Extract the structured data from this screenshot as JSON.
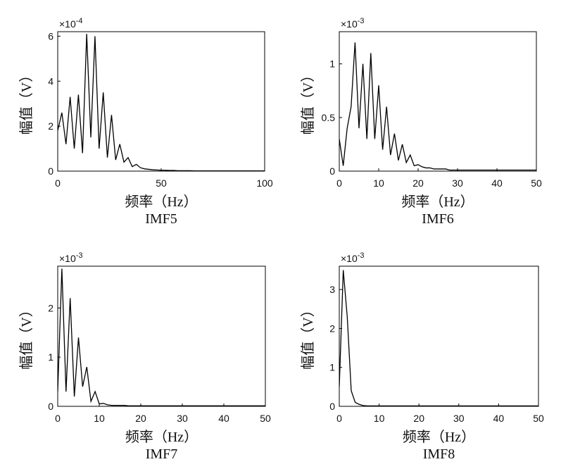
{
  "chart_data": [
    {
      "type": "line",
      "title": "IMF5",
      "xlabel": "频率（Hz）",
      "ylabel": "幅值（V）",
      "y_offset_base": "×10",
      "y_offset_exponent": "-4",
      "color": "#000000",
      "xlim": [
        0,
        100
      ],
      "xticks": [
        0,
        50,
        100
      ],
      "ylim": [
        0,
        6.2
      ],
      "yticks": [
        0,
        2,
        4,
        6
      ],
      "x": [
        0,
        2,
        4,
        6,
        8,
        10,
        12,
        14,
        16,
        18,
        20,
        22,
        24,
        26,
        28,
        30,
        32,
        34,
        36,
        38,
        40,
        42,
        44,
        46,
        48,
        50,
        52,
        54,
        56,
        58,
        60,
        62,
        64,
        66,
        68,
        70,
        72,
        74,
        76,
        78,
        80,
        82,
        84,
        86,
        88,
        90,
        92,
        94,
        96,
        98,
        100
      ],
      "values": [
        1.8,
        2.6,
        1.2,
        3.3,
        1.0,
        3.4,
        0.8,
        6.1,
        1.5,
        6.0,
        1.0,
        3.5,
        0.6,
        2.5,
        0.5,
        1.2,
        0.4,
        0.6,
        0.2,
        0.3,
        0.15,
        0.1,
        0.08,
        0.06,
        0.05,
        0.04,
        0.04,
        0.03,
        0.03,
        0.02,
        0.02,
        0.02,
        0.02,
        0.01,
        0.01,
        0.01,
        0.01,
        0.01,
        0.01,
        0.01,
        0.01,
        0.01,
        0.01,
        0.01,
        0.01,
        0.01,
        0.01,
        0.01,
        0.01,
        0.01,
        0.01
      ]
    },
    {
      "type": "line",
      "title": "IMF6",
      "xlabel": "频率（Hz）",
      "ylabel": "幅值（V）",
      "y_offset_base": "×10",
      "y_offset_exponent": "-3",
      "color": "#000000",
      "xlim": [
        0,
        50
      ],
      "xticks": [
        0,
        10,
        20,
        30,
        40,
        50
      ],
      "ylim": [
        0,
        1.3
      ],
      "yticks": [
        0,
        0.5,
        1
      ],
      "x": [
        0,
        1,
        2,
        3,
        4,
        5,
        6,
        7,
        8,
        9,
        10,
        11,
        12,
        13,
        14,
        15,
        16,
        17,
        18,
        19,
        20,
        21,
        22,
        23,
        24,
        25,
        26,
        27,
        28,
        29,
        30,
        31,
        32,
        33,
        34,
        35,
        36,
        37,
        38,
        39,
        40,
        41,
        42,
        43,
        44,
        45,
        46,
        47,
        48,
        49,
        50
      ],
      "values": [
        0.3,
        0.05,
        0.4,
        0.6,
        1.2,
        0.4,
        1.0,
        0.3,
        1.1,
        0.3,
        0.8,
        0.2,
        0.6,
        0.15,
        0.35,
        0.1,
        0.25,
        0.08,
        0.15,
        0.05,
        0.06,
        0.04,
        0.03,
        0.03,
        0.02,
        0.02,
        0.02,
        0.02,
        0.01,
        0.01,
        0.01,
        0.01,
        0.01,
        0.01,
        0.01,
        0.01,
        0.01,
        0.01,
        0.01,
        0.01,
        0.01,
        0.01,
        0.01,
        0.01,
        0.01,
        0.01,
        0.01,
        0.01,
        0.01,
        0.01,
        0.01
      ]
    },
    {
      "type": "line",
      "title": "IMF7",
      "xlabel": "频率（Hz）",
      "ylabel": "幅值（V）",
      "y_offset_base": "×10",
      "y_offset_exponent": "-3",
      "color": "#000000",
      "xlim": [
        0,
        50
      ],
      "xticks": [
        0,
        10,
        20,
        30,
        40,
        50
      ],
      "ylim": [
        0,
        2.85
      ],
      "yticks": [
        0,
        1,
        2
      ],
      "x": [
        0,
        1,
        2,
        3,
        4,
        5,
        6,
        7,
        8,
        9,
        10,
        11,
        12,
        13,
        14,
        15,
        16,
        17,
        18,
        19,
        20,
        21,
        22,
        23,
        24,
        25,
        26,
        27,
        28,
        29,
        30,
        31,
        32,
        33,
        34,
        35,
        36,
        37,
        38,
        39,
        40,
        41,
        42,
        43,
        44,
        45,
        46,
        47,
        48,
        49,
        50
      ],
      "values": [
        0.3,
        2.8,
        0.3,
        2.2,
        0.2,
        1.4,
        0.4,
        0.8,
        0.1,
        0.3,
        0.05,
        0.06,
        0.03,
        0.02,
        0.02,
        0.02,
        0.02,
        0.01,
        0.01,
        0.01,
        0.01,
        0.01,
        0.01,
        0.01,
        0.01,
        0.01,
        0.01,
        0.01,
        0.01,
        0.01,
        0.01,
        0.01,
        0.01,
        0.01,
        0.01,
        0.01,
        0.01,
        0.01,
        0.01,
        0.01,
        0.01,
        0.01,
        0.01,
        0.01,
        0.01,
        0.01,
        0.01,
        0.01,
        0.01,
        0.01,
        0.01
      ]
    },
    {
      "type": "line",
      "title": "IMF8",
      "xlabel": "频率（Hz）",
      "ylabel": "幅值（V）",
      "y_offset_base": "×10",
      "y_offset_exponent": "-3",
      "color": "#000000",
      "xlim": [
        0,
        50
      ],
      "xticks": [
        0,
        10,
        20,
        30,
        40,
        50
      ],
      "ylim": [
        0,
        3.6
      ],
      "yticks": [
        0,
        1,
        2,
        3
      ],
      "x": [
        0,
        1,
        2,
        3,
        4,
        5,
        6,
        7,
        8,
        9,
        10,
        11,
        12,
        13,
        14,
        15,
        16,
        17,
        18,
        19,
        20,
        21,
        22,
        23,
        24,
        25,
        26,
        27,
        28,
        29,
        30,
        31,
        32,
        33,
        34,
        35,
        36,
        37,
        38,
        39,
        40,
        41,
        42,
        43,
        44,
        45,
        46,
        47,
        48,
        49,
        50
      ],
      "values": [
        0.5,
        3.5,
        2.3,
        0.4,
        0.1,
        0.05,
        0.02,
        0.01,
        0.01,
        0.01,
        0.01,
        0.01,
        0.01,
        0.01,
        0.01,
        0.01,
        0.01,
        0.01,
        0.01,
        0.01,
        0.01,
        0.01,
        0.01,
        0.01,
        0.01,
        0.01,
        0.01,
        0.01,
        0.01,
        0.01,
        0.01,
        0.01,
        0.01,
        0.01,
        0.01,
        0.01,
        0.01,
        0.01,
        0.01,
        0.01,
        0.01,
        0.01,
        0.01,
        0.01,
        0.01,
        0.01,
        0.01,
        0.01,
        0.01,
        0.01,
        0.01
      ]
    }
  ]
}
